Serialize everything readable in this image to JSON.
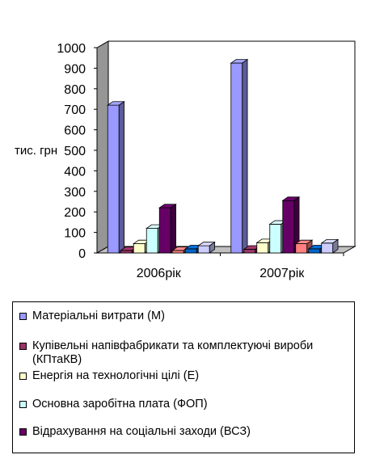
{
  "chart_data": {
    "type": "bar",
    "ylabel": "тис. грн",
    "ylim": [
      0,
      1000
    ],
    "yticks": [
      "0",
      "100",
      "200",
      "300",
      "400",
      "500",
      "600",
      "700",
      "800",
      "900",
      "1000"
    ],
    "categories": [
      "2006рік",
      "2007рік"
    ],
    "grid": false,
    "legend_position": "bottom",
    "series": [
      {
        "name": "Матеріальні витрати (М)",
        "values": [
          720,
          925
        ],
        "color": "#9999ff"
      },
      {
        "name": "Купівельні напівфабрикати та комплектуючі вироби (КПтаКВ)",
        "values": [
          12,
          18
        ],
        "color": "#993366"
      },
      {
        "name": "Енергія на технологічні цілі (Е)",
        "values": [
          45,
          50
        ],
        "color": "#ffffcc"
      },
      {
        "name": "Основна заробітна плата (ФОП)",
        "values": [
          120,
          140
        ],
        "color": "#ccffff"
      },
      {
        "name": "Відрахування на соціальні заходи (ВСЗ)",
        "values": [
          220,
          255
        ],
        "color": "#660066"
      },
      {
        "name": "",
        "values": [
          12,
          45
        ],
        "color": "#ff8080"
      },
      {
        "name": "",
        "values": [
          20,
          20
        ],
        "color": "#0066cc"
      },
      {
        "name": "",
        "values": [
          35,
          48
        ],
        "color": "#ccccff"
      }
    ]
  }
}
